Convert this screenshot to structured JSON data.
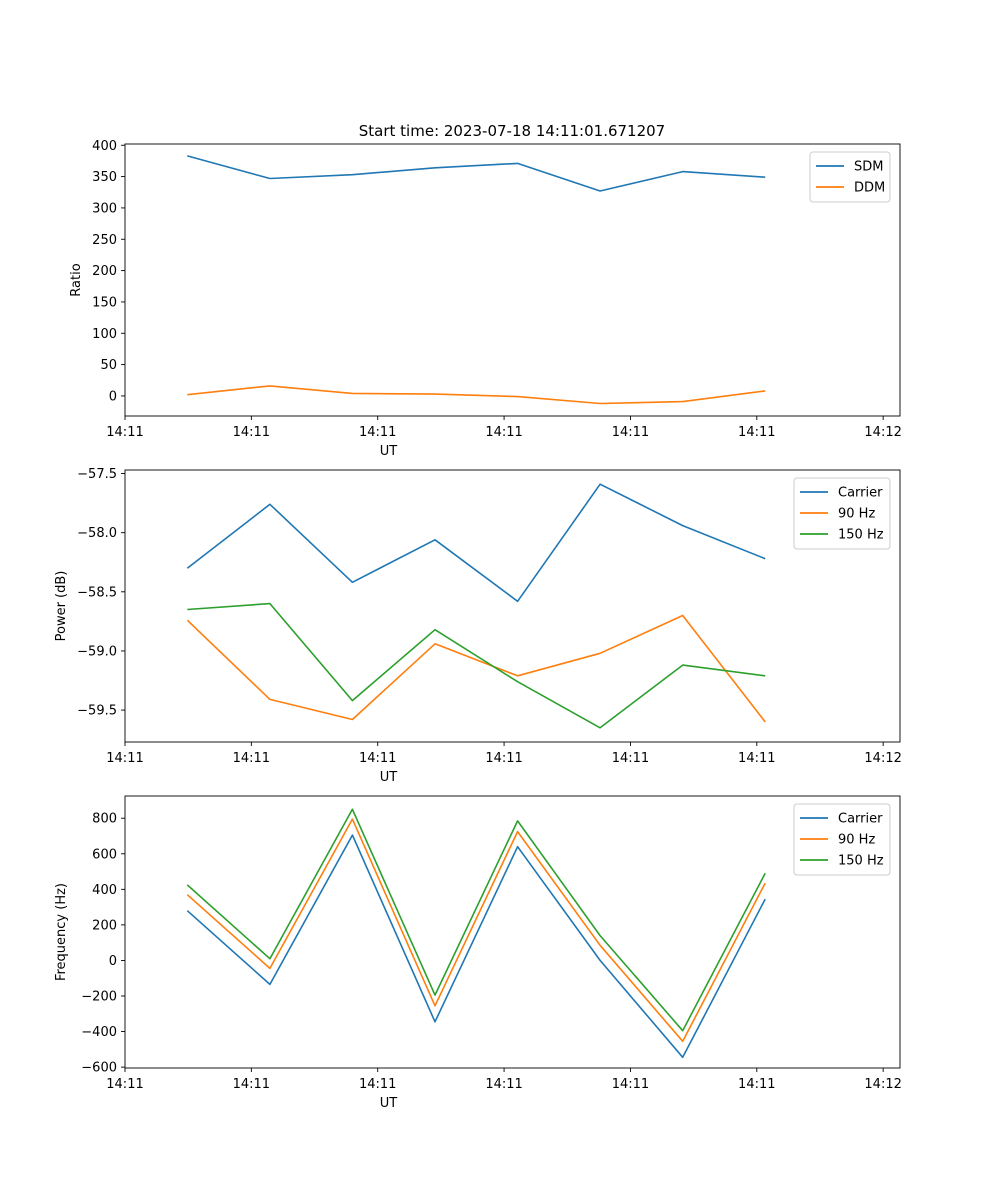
{
  "title": "Start time: 2023-07-18 14:11:01.671207",
  "colors": {
    "blue": "#1f77b4",
    "orange": "#ff7f0e",
    "green": "#2ca02c"
  },
  "chart_data": [
    {
      "type": "line",
      "title": "Start time: 2023-07-18 14:11:01.671207",
      "xlabel": "UT",
      "ylabel": "Ratio",
      "xlim": [
        0,
        9.2
      ],
      "ylim": [
        -32,
        402
      ],
      "xticks": [
        0.0,
        1.5,
        3.0,
        4.5,
        6.0,
        7.5,
        9.0
      ],
      "xtick_labels": [
        "14:11",
        "14:11",
        "14:11",
        "14:11",
        "14:11",
        "14:11",
        "14:12"
      ],
      "yticks": [
        0,
        50,
        100,
        150,
        200,
        250,
        300,
        350,
        400
      ],
      "ytick_labels": [
        "0",
        "50",
        "100",
        "150",
        "200",
        "250",
        "300",
        "350",
        "400"
      ],
      "x": [
        0.74,
        1.72,
        2.7,
        3.68,
        4.66,
        5.64,
        6.62,
        7.6
      ],
      "legend": "top-right",
      "series": [
        {
          "name": "SDM",
          "color": "#1f77b4",
          "values": [
            383,
            347,
            353,
            364,
            371,
            327,
            358,
            349
          ]
        },
        {
          "name": "DDM",
          "color": "#ff7f0e",
          "values": [
            2,
            16,
            4,
            3,
            -1,
            -12,
            -9,
            8
          ]
        }
      ]
    },
    {
      "type": "line",
      "title": "",
      "xlabel": "UT",
      "ylabel": "Power (dB)",
      "xlim": [
        0,
        9.2
      ],
      "ylim": [
        -59.77,
        -57.47
      ],
      "xticks": [
        0.0,
        1.5,
        3.0,
        4.5,
        6.0,
        7.5,
        9.0
      ],
      "xtick_labels": [
        "14:11",
        "14:11",
        "14:11",
        "14:11",
        "14:11",
        "14:11",
        "14:12"
      ],
      "yticks": [
        -57.5,
        -58.0,
        -58.5,
        -59.0,
        -59.5
      ],
      "ytick_labels": [
        "−57.5",
        "−58.0",
        "−58.5",
        "−59.0",
        "−59.5"
      ],
      "x": [
        0.74,
        1.72,
        2.7,
        3.68,
        4.66,
        5.64,
        6.62,
        7.6
      ],
      "legend": "top-right",
      "series": [
        {
          "name": "Carrier",
          "color": "#1f77b4",
          "values": [
            -58.3,
            -57.76,
            -58.42,
            -58.06,
            -58.58,
            -57.59,
            -57.94,
            -58.22
          ]
        },
        {
          "name": "90 Hz",
          "color": "#ff7f0e",
          "values": [
            -58.74,
            -59.41,
            -59.58,
            -58.94,
            -59.21,
            -59.02,
            -58.7,
            -59.6
          ]
        },
        {
          "name": "150 Hz",
          "color": "#2ca02c",
          "values": [
            -58.65,
            -58.6,
            -59.42,
            -58.82,
            -59.26,
            -59.65,
            -59.12,
            -59.21
          ]
        }
      ]
    },
    {
      "type": "line",
      "title": "",
      "xlabel": "UT",
      "ylabel": "Frequency (Hz)",
      "xlim": [
        0,
        9.2
      ],
      "ylim": [
        -605,
        925
      ],
      "xticks": [
        0.0,
        1.5,
        3.0,
        4.5,
        6.0,
        7.5,
        9.0
      ],
      "xtick_labels": [
        "14:11",
        "14:11",
        "14:11",
        "14:11",
        "14:11",
        "14:11",
        "14:12"
      ],
      "yticks": [
        -600,
        -400,
        -200,
        0,
        200,
        400,
        600,
        800
      ],
      "ytick_labels": [
        "−600",
        "−400",
        "−200",
        "0",
        "200",
        "400",
        "600",
        "800"
      ],
      "x": [
        0.74,
        1.72,
        2.7,
        3.68,
        4.66,
        5.64,
        6.62,
        7.6
      ],
      "legend": "top-right",
      "series": [
        {
          "name": "Carrier",
          "color": "#1f77b4",
          "values": [
            280,
            -135,
            705,
            -345,
            640,
            0,
            -545,
            345
          ]
        },
        {
          "name": "90 Hz",
          "color": "#ff7f0e",
          "values": [
            370,
            -45,
            795,
            -255,
            725,
            85,
            -455,
            435
          ]
        },
        {
          "name": "150 Hz",
          "color": "#2ca02c",
          "values": [
            425,
            10,
            850,
            -195,
            785,
            140,
            -395,
            490
          ]
        }
      ]
    }
  ]
}
